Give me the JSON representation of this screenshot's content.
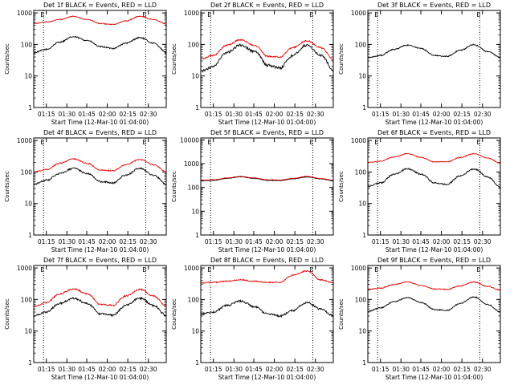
{
  "colors": {
    "events": "#000000",
    "lld": "#e00000",
    "axis": "#000000"
  },
  "chart_data": [
    {
      "title": "Det 1f BLACK = Events, RED = LLD",
      "type": "line",
      "yscale": "log",
      "ylim": [
        1,
        1200
      ],
      "ylabel": "Counts/sec",
      "xlabel": "Start Time (12-Mar-10 01:04:00)",
      "x_ticks": [
        "01:15",
        "01:30",
        "01:45",
        "02:00",
        "02:15",
        "02:30"
      ],
      "y_ticks": [
        "1",
        "10",
        "100",
        "1000"
      ],
      "markers": [
        {
          "x": 0.074,
          "label": "E"
        },
        {
          "x": 0.845,
          "label": "E"
        }
      ],
      "series": [
        {
          "name": "Events",
          "color": "#000000",
          "x": [
            0,
            0.1,
            0.2,
            0.3,
            0.4,
            0.5,
            0.6,
            0.7,
            0.8,
            0.9,
            1.0
          ],
          "y": [
            55,
            70,
            120,
            175,
            135,
            85,
            75,
            110,
            165,
            110,
            55
          ],
          "noise": 0.05
        },
        {
          "name": "LLD",
          "color": "#e00000",
          "x": [
            0,
            0.1,
            0.2,
            0.3,
            0.4,
            0.5,
            0.6,
            0.7,
            0.8,
            0.9,
            1.0
          ],
          "y": [
            460,
            520,
            620,
            780,
            620,
            460,
            430,
            560,
            780,
            620,
            450
          ],
          "noise": 0.03
        }
      ]
    },
    {
      "title": "Det 2f BLACK = Events, RED = LLD",
      "type": "line",
      "yscale": "log",
      "ylim": [
        1,
        1200
      ],
      "ylabel": "Counts/sec",
      "xlabel": "Start Time (12-Mar-10 01:04:00)",
      "x_ticks": [
        "01:15",
        "01:30",
        "01:45",
        "02:00",
        "02:15",
        "02:30"
      ],
      "y_ticks": [
        "1",
        "10",
        "100",
        "1000"
      ],
      "markers": [
        {
          "x": 0.074,
          "label": "E"
        },
        {
          "x": 0.845,
          "label": "E"
        }
      ],
      "series": [
        {
          "name": "Events",
          "color": "#000000",
          "x": [
            0,
            0.1,
            0.2,
            0.3,
            0.4,
            0.5,
            0.6,
            0.7,
            0.8,
            0.9,
            1.0
          ],
          "y": [
            14,
            20,
            55,
            95,
            60,
            22,
            18,
            45,
            95,
            45,
            14
          ],
          "noise": 0.09
        },
        {
          "name": "LLD",
          "color": "#e00000",
          "x": [
            0,
            0.1,
            0.2,
            0.3,
            0.4,
            0.5,
            0.6,
            0.7,
            0.8,
            0.9,
            1.0
          ],
          "y": [
            35,
            45,
            95,
            140,
            95,
            42,
            40,
            80,
            130,
            80,
            32
          ],
          "noise": 0.05
        }
      ]
    },
    {
      "title": "Det 3f BLACK = Events, RED = LLD",
      "type": "line",
      "yscale": "log",
      "ylim": [
        1,
        1200
      ],
      "ylabel": "Counts/sec",
      "xlabel": "Start Time (12-Mar-10 01:04:00)",
      "x_ticks": [
        "01:15",
        "01:30",
        "01:45",
        "02:00",
        "02:15",
        "02:30"
      ],
      "y_ticks": [
        "1",
        "10",
        "100",
        "1000"
      ],
      "markers": [
        {
          "x": 0.074,
          "label": "E"
        },
        {
          "x": 0.845,
          "label": "E"
        }
      ],
      "series": [
        {
          "name": "Events",
          "color": "#000000",
          "x": [
            0,
            0.1,
            0.2,
            0.3,
            0.4,
            0.5,
            0.6,
            0.7,
            0.8,
            0.9,
            1.0
          ],
          "y": [
            38,
            45,
            70,
            95,
            75,
            45,
            42,
            65,
            98,
            60,
            38
          ],
          "noise": 0.04
        }
      ]
    },
    {
      "title": "Det 4f BLACK = Events, RED = LLD",
      "type": "line",
      "yscale": "log",
      "ylim": [
        1,
        1200
      ],
      "ylabel": "Counts/sec",
      "xlabel": "Start Time (12-Mar-10 01:04:00)",
      "x_ticks": [
        "01:15",
        "01:30",
        "01:45",
        "02:00",
        "02:15",
        "02:30"
      ],
      "y_ticks": [
        "1",
        "10",
        "100",
        "1000"
      ],
      "markers": [
        {
          "x": 0.074,
          "label": "E"
        },
        {
          "x": 0.845,
          "label": "E"
        }
      ],
      "series": [
        {
          "name": "Events",
          "color": "#000000",
          "x": [
            0,
            0.1,
            0.2,
            0.3,
            0.4,
            0.5,
            0.6,
            0.7,
            0.8,
            0.9,
            1.0
          ],
          "y": [
            40,
            55,
            90,
            130,
            90,
            50,
            45,
            80,
            130,
            80,
            40
          ],
          "noise": 0.06
        },
        {
          "name": "LLD",
          "color": "#e00000",
          "x": [
            0,
            0.1,
            0.2,
            0.3,
            0.4,
            0.5,
            0.6,
            0.7,
            0.8,
            0.9,
            1.0
          ],
          "y": [
            100,
            120,
            190,
            260,
            190,
            115,
            110,
            170,
            250,
            170,
            100
          ],
          "noise": 0.04
        }
      ]
    },
    {
      "title": "Det 5f BLACK = Events, RED = LLD",
      "type": "line",
      "yscale": "log",
      "ylim": [
        1,
        12000
      ],
      "ylabel": "Counts/sec",
      "xlabel": "Start Time (12-Mar-10 01:04:00)",
      "x_ticks": [
        "01:15",
        "01:30",
        "01:45",
        "02:00",
        "02:15",
        "02:30"
      ],
      "y_ticks": [
        "1",
        "10",
        "100",
        "1000",
        "10000"
      ],
      "markers": [
        {
          "x": 0.074,
          "label": "E"
        },
        {
          "x": 0.845,
          "label": "E"
        }
      ],
      "series": [
        {
          "name": "Events",
          "color": "#000000",
          "x": [
            0,
            0.1,
            0.2,
            0.3,
            0.4,
            0.5,
            0.6,
            0.7,
            0.8,
            0.9,
            1.0
          ],
          "y": [
            190,
            200,
            240,
            280,
            240,
            200,
            195,
            230,
            275,
            230,
            190
          ],
          "noise": 0.02
        },
        {
          "name": "LLD",
          "color": "#e00000",
          "x": [
            0,
            0.1,
            0.2,
            0.3,
            0.4,
            0.5,
            0.6,
            0.7,
            0.8,
            0.9,
            1.0
          ],
          "y": [
            200,
            210,
            250,
            290,
            250,
            210,
            205,
            240,
            290,
            240,
            200
          ],
          "noise": 0.02
        }
      ]
    },
    {
      "title": "Det 6f BLACK = Events, RED = LLD",
      "type": "line",
      "yscale": "log",
      "ylim": [
        1,
        1200
      ],
      "ylabel": "Counts/sec",
      "xlabel": "Start Time (12-Mar-10 01:04:00)",
      "x_ticks": [
        "01:15",
        "01:30",
        "01:45",
        "02:00",
        "02:15",
        "02:30"
      ],
      "y_ticks": [
        "1",
        "10",
        "100",
        "1000"
      ],
      "markers": [
        {
          "x": 0.074,
          "label": "E"
        },
        {
          "x": 0.845,
          "label": "E"
        }
      ],
      "series": [
        {
          "name": "Events",
          "color": "#000000",
          "x": [
            0,
            0.1,
            0.2,
            0.3,
            0.4,
            0.5,
            0.6,
            0.7,
            0.8,
            0.9,
            1.0
          ],
          "y": [
            35,
            45,
            85,
            125,
            85,
            45,
            40,
            75,
            125,
            70,
            32
          ],
          "noise": 0.05
        },
        {
          "name": "LLD",
          "color": "#e00000",
          "x": [
            0,
            0.1,
            0.2,
            0.3,
            0.4,
            0.5,
            0.6,
            0.7,
            0.8,
            0.9,
            1.0
          ],
          "y": [
            200,
            220,
            300,
            380,
            290,
            210,
            210,
            290,
            380,
            280,
            190
          ],
          "noise": 0.03
        }
      ]
    },
    {
      "title": "Det 7f BLACK = Events, RED = LLD",
      "type": "line",
      "yscale": "log",
      "ylim": [
        1,
        1200
      ],
      "ylabel": "Counts/sec",
      "xlabel": "Start Time (12-Mar-10 01:04:00)",
      "x_ticks": [
        "01:15",
        "01:30",
        "01:45",
        "02:00",
        "02:15",
        "02:30"
      ],
      "y_ticks": [
        "1",
        "10",
        "100",
        "1000"
      ],
      "markers": [
        {
          "x": 0.074,
          "label": "E"
        },
        {
          "x": 0.845,
          "label": "E"
        }
      ],
      "series": [
        {
          "name": "Events",
          "color": "#000000",
          "x": [
            0,
            0.1,
            0.2,
            0.3,
            0.4,
            0.5,
            0.6,
            0.7,
            0.8,
            0.9,
            1.0
          ],
          "y": [
            30,
            40,
            75,
            110,
            75,
            35,
            32,
            65,
            110,
            65,
            30
          ],
          "noise": 0.07
        },
        {
          "name": "LLD",
          "color": "#e00000",
          "x": [
            0,
            0.1,
            0.2,
            0.3,
            0.4,
            0.5,
            0.6,
            0.7,
            0.8,
            0.9,
            1.0
          ],
          "y": [
            60,
            80,
            150,
            220,
            150,
            70,
            65,
            130,
            210,
            130,
            60
          ],
          "noise": 0.05
        }
      ]
    },
    {
      "title": "Det 8f BLACK = Events, RED = LLD",
      "type": "line",
      "yscale": "log",
      "ylim": [
        1,
        1200
      ],
      "ylabel": "Counts/sec",
      "xlabel": "Start Time (12-Mar-10 01:04:00)",
      "x_ticks": [
        "01:15",
        "01:30",
        "01:45",
        "02:00",
        "02:15",
        "02:30"
      ],
      "y_ticks": [
        "1",
        "10",
        "100",
        "1000"
      ],
      "markers": [
        {
          "x": 0.074,
          "label": "E"
        },
        {
          "x": 0.845,
          "label": "E"
        }
      ],
      "series": [
        {
          "name": "Events",
          "color": "#000000",
          "x": [
            0,
            0.1,
            0.2,
            0.3,
            0.4,
            0.5,
            0.6,
            0.7,
            0.8,
            0.9,
            1.0
          ],
          "y": [
            35,
            40,
            65,
            90,
            60,
            35,
            30,
            45,
            80,
            50,
            30
          ],
          "noise": 0.07
        },
        {
          "name": "LLD",
          "color": "#e00000",
          "x": [
            0,
            0.1,
            0.2,
            0.3,
            0.4,
            0.5,
            0.6,
            0.7,
            0.8,
            0.9,
            1.0
          ],
          "y": [
            340,
            350,
            380,
            420,
            380,
            350,
            350,
            600,
            800,
            420,
            340
          ],
          "noise": 0.04
        }
      ]
    },
    {
      "title": "Det 9f BLACK = Events, RED = LLD",
      "type": "line",
      "yscale": "log",
      "ylim": [
        1,
        1200
      ],
      "ylabel": "Counts/sec",
      "xlabel": "Start Time (12-Mar-10 01:04:00)",
      "x_ticks": [
        "01:15",
        "01:30",
        "01:45",
        "02:00",
        "02:15",
        "02:30"
      ],
      "y_ticks": [
        "1",
        "10",
        "100",
        "1000"
      ],
      "markers": [
        {
          "x": 0.074,
          "label": "E"
        },
        {
          "x": 0.845,
          "label": "E"
        }
      ],
      "series": [
        {
          "name": "Events",
          "color": "#000000",
          "x": [
            0,
            0.1,
            0.2,
            0.3,
            0.4,
            0.5,
            0.6,
            0.7,
            0.8,
            0.9,
            1.0
          ],
          "y": [
            42,
            55,
            85,
            115,
            80,
            48,
            45,
            75,
            120,
            70,
            40
          ],
          "noise": 0.04
        },
        {
          "name": "LLD",
          "color": "#e00000",
          "x": [
            0,
            0.1,
            0.2,
            0.3,
            0.4,
            0.5,
            0.6,
            0.7,
            0.8,
            0.9,
            1.0
          ],
          "y": [
            210,
            230,
            300,
            360,
            280,
            215,
            210,
            270,
            360,
            260,
            200
          ],
          "noise": 0.03
        }
      ]
    }
  ]
}
